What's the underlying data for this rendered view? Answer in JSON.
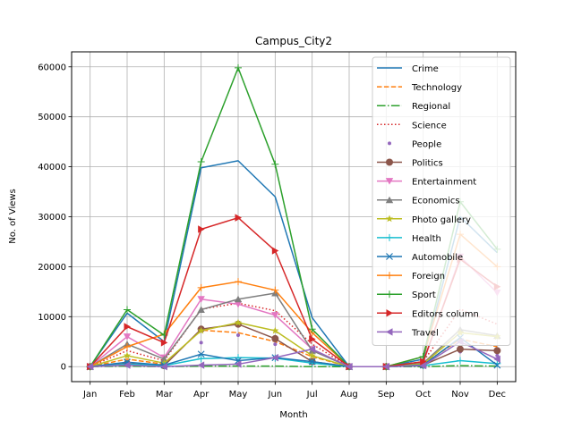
{
  "chart_data": {
    "type": "line",
    "title": "Campus_City2",
    "xlabel": "Month",
    "ylabel": "No. of Views",
    "categories": [
      "Jan",
      "Feb",
      "Mar",
      "Apr",
      "May",
      "Jun",
      "Jul",
      "Aug",
      "Sep",
      "Oct",
      "Nov",
      "Dec"
    ],
    "ylim": [
      -3000,
      63000
    ],
    "yticks": [
      0,
      10000,
      20000,
      30000,
      40000,
      50000,
      60000
    ],
    "ytick_labels": [
      "0",
      "10000",
      "20000",
      "30000",
      "40000",
      "50000",
      "60000"
    ],
    "grid": true,
    "legend_position": "top-right",
    "series": [
      {
        "name": "Crime",
        "color": "#1f77b4",
        "dash": "solid",
        "marker": "none",
        "values": [
          0,
          10700,
          5000,
          39800,
          41200,
          34000,
          9800,
          0,
          0,
          1500,
          30000,
          22800
        ]
      },
      {
        "name": "Technology",
        "color": "#ff7f0e",
        "dash": "dashed",
        "marker": "none",
        "values": [
          0,
          1500,
          500,
          7300,
          6800,
          5000,
          2000,
          0,
          0,
          500,
          5500,
          4000
        ]
      },
      {
        "name": "Regional",
        "color": "#2ca02c",
        "dash": "dashdot",
        "marker": "none",
        "values": [
          0,
          100,
          0,
          100,
          100,
          100,
          0,
          0,
          0,
          0,
          200,
          100
        ]
      },
      {
        "name": "Science",
        "color": "#d62728",
        "dash": "dotted",
        "marker": "none",
        "values": [
          0,
          3200,
          1200,
          11500,
          12700,
          11200,
          4500,
          0,
          0,
          1000,
          11500,
          8500
        ]
      },
      {
        "name": "People",
        "color": "#9467bd",
        "dash": "none",
        "marker": "dot",
        "values": [
          0,
          500,
          300,
          4800,
          6300,
          4500,
          3500,
          0,
          0,
          300,
          3000,
          2200
        ]
      },
      {
        "name": "Politics",
        "color": "#8c564b",
        "dash": "solid",
        "marker": "circle",
        "values": [
          0,
          600,
          200,
          7500,
          8500,
          5600,
          1000,
          0,
          0,
          300,
          3500,
          3200
        ]
      },
      {
        "name": "Entertainment",
        "color": "#e377c2",
        "dash": "solid",
        "marker": "triangle-down",
        "values": [
          0,
          6000,
          1800,
          13500,
          12500,
          10300,
          3500,
          0,
          0,
          700,
          22000,
          14800
        ]
      },
      {
        "name": "Economics",
        "color": "#7f7f7f",
        "dash": "solid",
        "marker": "triangle-up",
        "values": [
          0,
          4500,
          1500,
          11400,
          13500,
          14700,
          3200,
          0,
          0,
          700,
          7400,
          6200
        ]
      },
      {
        "name": "Photo gallery",
        "color": "#bcbd22",
        "dash": "solid",
        "marker": "star",
        "values": [
          0,
          2200,
          700,
          7200,
          8800,
          7200,
          2200,
          0,
          0,
          500,
          6800,
          6000
        ]
      },
      {
        "name": "Health",
        "color": "#17becf",
        "dash": "solid",
        "marker": "plus",
        "values": [
          0,
          500,
          200,
          1600,
          1800,
          1700,
          700,
          0,
          0,
          200,
          1200,
          600
        ]
      },
      {
        "name": "Automobile",
        "color": "#1f77b4",
        "dash": "solid",
        "marker": "x",
        "values": [
          0,
          900,
          300,
          2500,
          1200,
          1800,
          1000,
          0,
          0,
          300,
          5800,
          300
        ]
      },
      {
        "name": "Foreign",
        "color": "#ff7f0e",
        "dash": "solid",
        "marker": "plus",
        "values": [
          0,
          4000,
          6500,
          15800,
          17000,
          15300,
          6800,
          0,
          0,
          2000,
          26500,
          20000
        ]
      },
      {
        "name": "Sport",
        "color": "#2ca02c",
        "dash": "solid",
        "marker": "plus",
        "values": [
          0,
          11400,
          6300,
          41000,
          59800,
          40500,
          7500,
          0,
          0,
          2000,
          33000,
          23500
        ]
      },
      {
        "name": "Editors column",
        "color": "#d62728",
        "dash": "solid",
        "marker": "triangle-right",
        "values": [
          0,
          8000,
          4800,
          27500,
          29800,
          23200,
          5500,
          0,
          0,
          1000,
          21500,
          16000
        ]
      },
      {
        "name": "Travel",
        "color": "#9467bd",
        "dash": "solid",
        "marker": "triangle-left",
        "values": [
          0,
          300,
          0,
          300,
          500,
          1800,
          3500,
          0,
          0,
          200,
          5000,
          1500
        ]
      }
    ]
  }
}
